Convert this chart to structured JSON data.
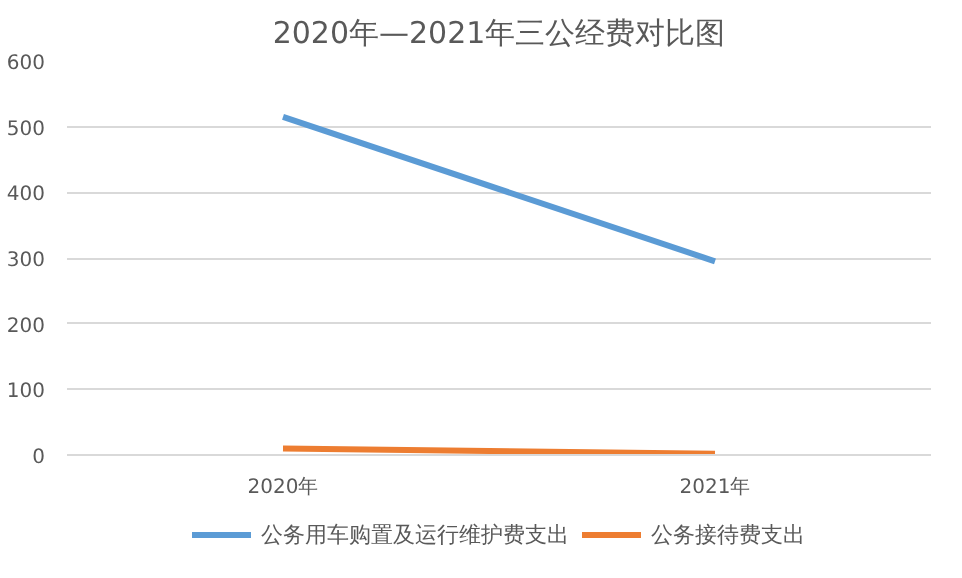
{
  "chart_data": {
    "type": "line",
    "title": "2020年—2021年三公经费对比图",
    "categories": [
      "2020年",
      "2021年"
    ],
    "series": [
      {
        "name": "公务用车购置及运行维护费支出",
        "color": "#5b9bd5",
        "values": [
          515,
          295
        ]
      },
      {
        "name": "公务接待费支出",
        "color": "#ed7d31",
        "values": [
          10,
          2
        ]
      }
    ],
    "ylim": [
      0,
      600
    ],
    "yticks": [
      0,
      100,
      200,
      300,
      400,
      500,
      600
    ],
    "grid": "y",
    "legend": "bottom",
    "marker": "none",
    "line_style": "solid"
  }
}
